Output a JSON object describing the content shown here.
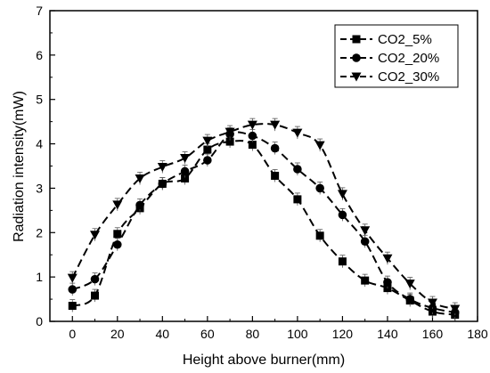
{
  "chart_data": {
    "type": "line",
    "xlabel": "Height above burner(mm)",
    "ylabel": "Radiation intensity(mW)",
    "xlim": [
      -10,
      180
    ],
    "ylim": [
      0,
      7
    ],
    "x_ticks": [
      0,
      20,
      40,
      60,
      80,
      100,
      120,
      140,
      160,
      180
    ],
    "y_ticks": [
      0,
      1,
      2,
      3,
      4,
      5,
      6,
      7
    ],
    "x_tick_labels": [
      "0",
      "20",
      "40",
      "60",
      "80",
      "100",
      "120",
      "140",
      "160",
      "180"
    ],
    "y_tick_labels": [
      "0",
      "1",
      "2",
      "3",
      "4",
      "5",
      "6",
      "7"
    ],
    "grid": false,
    "legend_position": "top-right",
    "x": [
      0,
      10,
      20,
      30,
      40,
      50,
      60,
      70,
      80,
      90,
      100,
      110,
      120,
      130,
      140,
      150,
      160,
      170
    ],
    "series": [
      {
        "name": "CO2_5%",
        "marker": "square",
        "values": [
          0.35,
          0.58,
          1.97,
          2.55,
          3.1,
          3.22,
          3.87,
          4.05,
          3.98,
          3.28,
          2.75,
          1.93,
          1.35,
          0.92,
          0.75,
          0.47,
          0.22,
          0.15
        ]
      },
      {
        "name": "CO2_20%",
        "marker": "circle",
        "values": [
          0.72,
          0.95,
          1.73,
          2.62,
          3.1,
          3.38,
          3.63,
          4.22,
          4.18,
          3.9,
          3.43,
          3.0,
          2.4,
          1.8,
          0.88,
          0.5,
          0.3,
          0.2
        ]
      },
      {
        "name": "CO2_30%",
        "marker": "triangle-down",
        "values": [
          0.98,
          1.95,
          2.63,
          3.22,
          3.48,
          3.68,
          4.07,
          4.27,
          4.43,
          4.43,
          4.25,
          3.97,
          2.87,
          2.05,
          1.42,
          0.85,
          0.42,
          0.28
        ]
      }
    ]
  }
}
